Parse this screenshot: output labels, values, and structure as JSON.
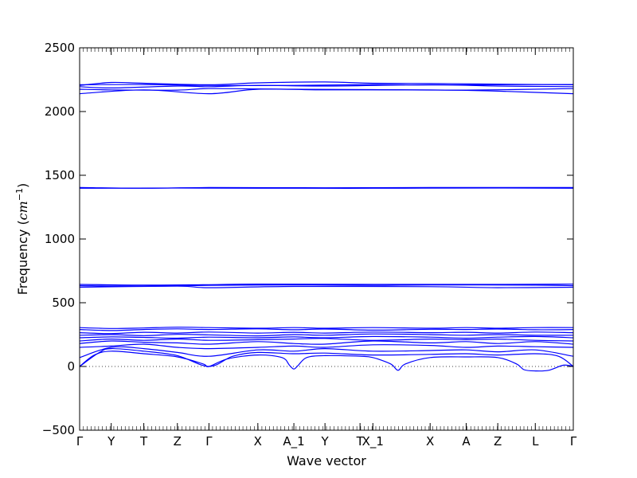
{
  "chart_data": {
    "type": "line",
    "title": "",
    "xlabel": "Wave vector",
    "ylabel": "Frequency",
    "ylabel_unit": "cm",
    "ylabel_unit_exp": "−1",
    "ylim": [
      -500,
      2500
    ],
    "yticks": [
      -500,
      0,
      500,
      1000,
      1500,
      2000,
      2500
    ],
    "ytick_labels": [
      "−500",
      "0",
      "500",
      "1000",
      "1500",
      "2000",
      "2500"
    ],
    "xticks": [
      {
        "label": "Γ",
        "k": 0
      },
      {
        "label": "Y",
        "k": 0.064
      },
      {
        "label": "T",
        "k": 0.13
      },
      {
        "label": "Z",
        "k": 0.198
      },
      {
        "label": "Γ",
        "k": 0.262
      },
      {
        "label": "X",
        "k": 0.361
      },
      {
        "label": "A_1",
        "k": 0.434
      },
      {
        "label": "Y",
        "k": 0.497
      },
      {
        "label": "T",
        "k": 0.568
      },
      {
        "label": "X_1",
        "k": 0.594
      },
      {
        "label": "X",
        "k": 0.71
      },
      {
        "label": "A",
        "k": 0.783
      },
      {
        "label": "Z",
        "k": 0.847
      },
      {
        "label": "L",
        "k": 0.923
      },
      {
        "label": "Γ",
        "k": 1.0
      }
    ],
    "zero_line": {
      "y": 0,
      "style": "dotted"
    },
    "band_color": "#0000ff",
    "series": [
      {
        "values": [
          [
            0,
            2140
          ],
          [
            0.13,
            2170
          ],
          [
            0.262,
            2140
          ],
          [
            0.361,
            2175
          ],
          [
            0.497,
            2170
          ],
          [
            0.71,
            2170
          ],
          [
            0.847,
            2160
          ],
          [
            1.0,
            2140
          ]
        ]
      },
      {
        "values": [
          [
            0,
            2175
          ],
          [
            0.064,
            2170
          ],
          [
            0.198,
            2168
          ],
          [
            0.262,
            2180
          ],
          [
            0.434,
            2175
          ],
          [
            0.594,
            2172
          ],
          [
            0.783,
            2168
          ],
          [
            1.0,
            2180
          ]
        ]
      },
      {
        "values": [
          [
            0,
            2195
          ],
          [
            0.064,
            2185
          ],
          [
            0.198,
            2200
          ],
          [
            0.262,
            2195
          ],
          [
            0.361,
            2205
          ],
          [
            0.497,
            2200
          ],
          [
            0.71,
            2210
          ],
          [
            0.847,
            2200
          ],
          [
            1.0,
            2195
          ]
        ]
      },
      {
        "values": [
          [
            0,
            2205
          ],
          [
            0.064,
            2228
          ],
          [
            0.13,
            2222
          ],
          [
            0.262,
            2210
          ],
          [
            0.361,
            2225
          ],
          [
            0.497,
            2232
          ],
          [
            0.594,
            2222
          ],
          [
            0.71,
            2220
          ],
          [
            0.847,
            2215
          ],
          [
            1.0,
            2210
          ]
        ]
      },
      {
        "values": [
          [
            0,
            2210
          ],
          [
            0.13,
            2212
          ],
          [
            0.262,
            2205
          ],
          [
            0.434,
            2205
          ],
          [
            0.594,
            2212
          ],
          [
            0.71,
            2208
          ],
          [
            0.923,
            2212
          ],
          [
            1.0,
            2212
          ]
        ]
      },
      {
        "values": [
          [
            0,
            1404
          ],
          [
            0.13,
            1398
          ],
          [
            0.262,
            1404
          ],
          [
            0.497,
            1402
          ],
          [
            0.71,
            1404
          ],
          [
            1.0,
            1404
          ]
        ]
      },
      {
        "values": [
          [
            0,
            1398
          ],
          [
            0.198,
            1400
          ],
          [
            0.361,
            1398
          ],
          [
            0.594,
            1398
          ],
          [
            0.847,
            1400
          ],
          [
            1.0,
            1398
          ]
        ]
      },
      {
        "values": [
          [
            0,
            622
          ],
          [
            0.198,
            630
          ],
          [
            0.262,
            618
          ],
          [
            0.434,
            628
          ],
          [
            0.71,
            626
          ],
          [
            0.847,
            618
          ],
          [
            1.0,
            622
          ]
        ]
      },
      {
        "values": [
          [
            0,
            634
          ],
          [
            0.13,
            630
          ],
          [
            0.262,
            636
          ],
          [
            0.434,
            640
          ],
          [
            0.594,
            636
          ],
          [
            0.71,
            640
          ],
          [
            0.923,
            638
          ],
          [
            1.0,
            634
          ]
        ]
      },
      {
        "values": [
          [
            0,
            644
          ],
          [
            0.13,
            638
          ],
          [
            0.262,
            642
          ],
          [
            0.361,
            646
          ],
          [
            0.594,
            644
          ],
          [
            0.847,
            644
          ],
          [
            1.0,
            646
          ]
        ]
      },
      {
        "values": [
          [
            0,
            0
          ],
          [
            0.03,
            90
          ],
          [
            0.064,
            120
          ],
          [
            0.13,
            100
          ],
          [
            0.198,
            75
          ],
          [
            0.25,
            20
          ],
          [
            0.262,
            0
          ],
          [
            0.3,
            60
          ],
          [
            0.361,
            90
          ],
          [
            0.41,
            70
          ],
          [
            0.425,
            10
          ],
          [
            0.434,
            -20
          ],
          [
            0.443,
            10
          ],
          [
            0.46,
            70
          ],
          [
            0.497,
            85
          ],
          [
            0.568,
            80
          ],
          [
            0.594,
            70
          ],
          [
            0.63,
            20
          ],
          [
            0.645,
            -30
          ],
          [
            0.66,
            20
          ],
          [
            0.71,
            70
          ],
          [
            0.783,
            75
          ],
          [
            0.847,
            70
          ],
          [
            0.885,
            20
          ],
          [
            0.9,
            -25
          ],
          [
            0.923,
            -35
          ],
          [
            0.95,
            -30
          ],
          [
            0.98,
            10
          ],
          [
            1.0,
            0
          ]
        ]
      },
      {
        "values": [
          [
            0,
            0
          ],
          [
            0.04,
            110
          ],
          [
            0.064,
            140
          ],
          [
            0.13,
            120
          ],
          [
            0.198,
            85
          ],
          [
            0.262,
            0
          ],
          [
            0.31,
            80
          ],
          [
            0.361,
            110
          ],
          [
            0.434,
            100
          ],
          [
            0.497,
            105
          ],
          [
            0.594,
            90
          ],
          [
            0.71,
            95
          ],
          [
            0.783,
            100
          ],
          [
            0.847,
            90
          ],
          [
            0.923,
            100
          ],
          [
            0.97,
            80
          ],
          [
            1.0,
            0
          ]
        ]
      },
      {
        "values": [
          [
            0,
            70
          ],
          [
            0.064,
            150
          ],
          [
            0.13,
            140
          ],
          [
            0.198,
            110
          ],
          [
            0.262,
            80
          ],
          [
            0.361,
            130
          ],
          [
            0.434,
            120
          ],
          [
            0.497,
            140
          ],
          [
            0.594,
            120
          ],
          [
            0.71,
            125
          ],
          [
            0.783,
            130
          ],
          [
            0.847,
            115
          ],
          [
            0.923,
            130
          ],
          [
            1.0,
            80
          ]
        ]
      },
      {
        "values": [
          [
            0,
            150
          ],
          [
            0.064,
            160
          ],
          [
            0.13,
            175
          ],
          [
            0.198,
            150
          ],
          [
            0.262,
            140
          ],
          [
            0.361,
            150
          ],
          [
            0.434,
            160
          ],
          [
            0.497,
            150
          ],
          [
            0.594,
            170
          ],
          [
            0.71,
            165
          ],
          [
            0.783,
            150
          ],
          [
            0.847,
            160
          ],
          [
            0.923,
            155
          ],
          [
            1.0,
            150
          ]
        ]
      },
      {
        "values": [
          [
            0,
            180
          ],
          [
            0.064,
            200
          ],
          [
            0.13,
            190
          ],
          [
            0.198,
            185
          ],
          [
            0.262,
            175
          ],
          [
            0.361,
            195
          ],
          [
            0.434,
            180
          ],
          [
            0.497,
            175
          ],
          [
            0.594,
            200
          ],
          [
            0.71,
            185
          ],
          [
            0.783,
            195
          ],
          [
            0.847,
            180
          ],
          [
            0.923,
            195
          ],
          [
            1.0,
            175
          ]
        ]
      },
      {
        "values": [
          [
            0,
            200
          ],
          [
            0.064,
            215
          ],
          [
            0.13,
            205
          ],
          [
            0.198,
            215
          ],
          [
            0.262,
            205
          ],
          [
            0.361,
            210
          ],
          [
            0.434,
            215
          ],
          [
            0.497,
            220
          ],
          [
            0.594,
            205
          ],
          [
            0.71,
            215
          ],
          [
            0.783,
            210
          ],
          [
            0.847,
            215
          ],
          [
            0.923,
            205
          ],
          [
            1.0,
            200
          ]
        ]
      },
      {
        "values": [
          [
            0,
            225
          ],
          [
            0.064,
            232
          ],
          [
            0.13,
            228
          ],
          [
            0.198,
            222
          ],
          [
            0.262,
            230
          ],
          [
            0.361,
            225
          ],
          [
            0.434,
            232
          ],
          [
            0.497,
            225
          ],
          [
            0.594,
            235
          ],
          [
            0.71,
            230
          ],
          [
            0.783,
            222
          ],
          [
            0.847,
            230
          ],
          [
            0.923,
            235
          ],
          [
            1.0,
            225
          ]
        ]
      },
      {
        "values": [
          [
            0,
            245
          ],
          [
            0.064,
            250
          ],
          [
            0.13,
            242
          ],
          [
            0.198,
            252
          ],
          [
            0.262,
            248
          ],
          [
            0.361,
            240
          ],
          [
            0.434,
            250
          ],
          [
            0.497,
            245
          ],
          [
            0.594,
            255
          ],
          [
            0.71,
            250
          ],
          [
            0.783,
            245
          ],
          [
            0.847,
            250
          ],
          [
            0.923,
            245
          ],
          [
            1.0,
            245
          ]
        ]
      },
      {
        "values": [
          [
            0,
            265
          ],
          [
            0.064,
            258
          ],
          [
            0.13,
            268
          ],
          [
            0.198,
            262
          ],
          [
            0.262,
            270
          ],
          [
            0.361,
            262
          ],
          [
            0.434,
            268
          ],
          [
            0.497,
            262
          ],
          [
            0.594,
            270
          ],
          [
            0.71,
            265
          ],
          [
            0.783,
            268
          ],
          [
            0.847,
            262
          ],
          [
            0.923,
            270
          ],
          [
            1.0,
            265
          ]
        ]
      },
      {
        "values": [
          [
            0,
            290
          ],
          [
            0.064,
            282
          ],
          [
            0.13,
            290
          ],
          [
            0.198,
            295
          ],
          [
            0.262,
            290
          ],
          [
            0.361,
            295
          ],
          [
            0.434,
            288
          ],
          [
            0.497,
            294
          ],
          [
            0.594,
            285
          ],
          [
            0.71,
            292
          ],
          [
            0.783,
            290
          ],
          [
            0.847,
            294
          ],
          [
            0.923,
            288
          ],
          [
            1.0,
            290
          ]
        ]
      },
      {
        "values": [
          [
            0,
            305
          ],
          [
            0.064,
            298
          ],
          [
            0.13,
            302
          ],
          [
            0.198,
            308
          ],
          [
            0.262,
            305
          ],
          [
            0.361,
            300
          ],
          [
            0.434,
            305
          ],
          [
            0.497,
            300
          ],
          [
            0.594,
            305
          ],
          [
            0.71,
            300
          ],
          [
            0.783,
            305
          ],
          [
            0.847,
            300
          ],
          [
            0.923,
            305
          ],
          [
            1.0,
            305
          ]
        ]
      }
    ]
  }
}
